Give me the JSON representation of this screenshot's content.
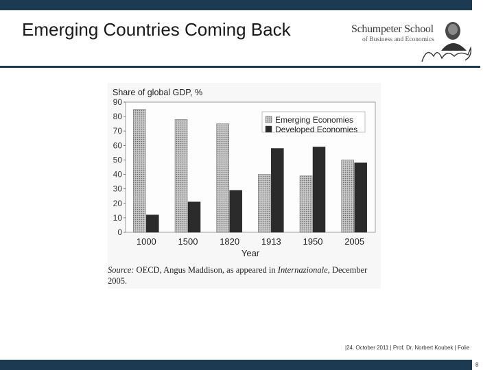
{
  "slide": {
    "title": "Emerging Countries Coming Back",
    "footer": "|24. October 2011 | Prof. Dr. Norbert Koubek | Folie",
    "page_number": "8",
    "colors": {
      "bar": "#1c3a52",
      "emerging": "#a9a9a9",
      "developed": "#2b2b2b"
    }
  },
  "logo": {
    "name": "Schumpeter School",
    "subtitle": "of Business and Economics"
  },
  "source": {
    "label": "Source:",
    "text_before": "OECD, Angus Maddison, as appeared in",
    "journal": "Internazionale",
    "text_after": ", December 2005."
  },
  "chart_data": {
    "type": "bar",
    "title": "Share of global GDP, %",
    "xlabel": "Year",
    "ylabel": "",
    "categories": [
      "1000",
      "1500",
      "1820",
      "1913",
      "1950",
      "2005"
    ],
    "series": [
      {
        "name": "Emerging Economies",
        "values": [
          85,
          78,
          75,
          40,
          39,
          50
        ]
      },
      {
        "name": "Developed Economies",
        "values": [
          12,
          21,
          29,
          58,
          59,
          48
        ]
      }
    ],
    "yticks": [
      "0",
      "10",
      "20",
      "30",
      "40",
      "50",
      "60",
      "70",
      "80",
      "90"
    ],
    "ylim": [
      0,
      90
    ],
    "grid": false,
    "legend_position": "top-right"
  }
}
